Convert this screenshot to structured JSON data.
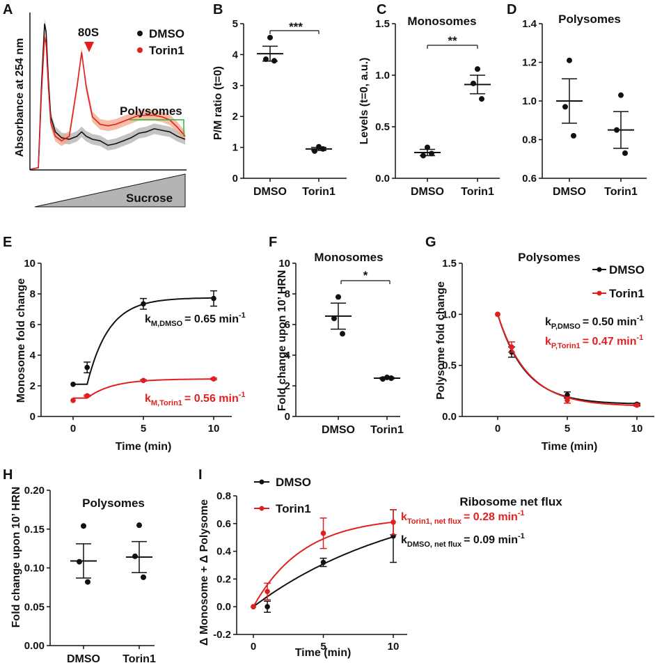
{
  "colors": {
    "dmso": "#111111",
    "torin1": "#e02020",
    "trace_dmso_band": "#b0b0b0",
    "trace_torin_band": "#f2a58a",
    "polysome_bracket": "#2fb82f",
    "arrow": "#e02020",
    "sucrose_fill": "#b4b4b4"
  },
  "chart_data": [
    {
      "id": "A",
      "label": "A",
      "type": "line",
      "ylabel": "Absorbance at 254 nm",
      "legend": [
        "DMSO",
        "Torin1"
      ],
      "annotations": {
        "peak": "80S",
        "region": "Polysomes",
        "gradient": "Sucrose"
      },
      "series": [
        {
          "name": "DMSO",
          "x": [
            0.0,
            0.05,
            0.07,
            0.09,
            0.1,
            0.115,
            0.13,
            0.16,
            0.2,
            0.25,
            0.3,
            0.33,
            0.36,
            0.4,
            0.45,
            0.5,
            0.55,
            0.6,
            0.65,
            0.7,
            0.75,
            0.8,
            0.85,
            0.9,
            0.95,
            1.0
          ],
          "y": [
            0.0,
            0.01,
            0.55,
            0.97,
            0.92,
            0.6,
            0.35,
            0.25,
            0.21,
            0.2,
            0.22,
            0.25,
            0.22,
            0.2,
            0.19,
            0.16,
            0.17,
            0.19,
            0.21,
            0.24,
            0.25,
            0.27,
            0.26,
            0.25,
            0.22,
            0.2
          ]
        },
        {
          "name": "Torin1",
          "x": [
            0.0,
            0.05,
            0.07,
            0.09,
            0.1,
            0.115,
            0.13,
            0.16,
            0.2,
            0.25,
            0.3,
            0.33,
            0.36,
            0.4,
            0.45,
            0.5,
            0.55,
            0.6,
            0.65,
            0.7,
            0.75,
            0.8,
            0.85,
            0.9,
            0.95,
            1.0
          ],
          "y": [
            0.0,
            0.01,
            0.5,
            0.88,
            0.84,
            0.55,
            0.31,
            0.22,
            0.19,
            0.22,
            0.55,
            0.78,
            0.55,
            0.35,
            0.3,
            0.29,
            0.3,
            0.32,
            0.34,
            0.36,
            0.36,
            0.36,
            0.35,
            0.33,
            0.28,
            0.22
          ]
        }
      ]
    },
    {
      "id": "B",
      "label": "B",
      "type": "scatter",
      "ylabel": "P/M ratio (t=0)",
      "ylim": [
        0,
        5
      ],
      "yticks": [
        "0",
        "1",
        "2",
        "3",
        "4",
        "5"
      ],
      "categories": [
        "DMSO",
        "Torin1"
      ],
      "significance": "***",
      "groups": [
        {
          "name": "DMSO",
          "points": [
            4.55,
            3.85,
            3.8
          ],
          "mean": 4.03,
          "sem": 0.24
        },
        {
          "name": "Torin1",
          "points": [
            1.02,
            0.88,
            0.95
          ],
          "mean": 0.95,
          "sem": 0.05
        }
      ]
    },
    {
      "id": "C",
      "label": "C",
      "type": "scatter",
      "title": "Monosomes",
      "ylabel": "Levels (t=0, a.u.)",
      "ylim": [
        0,
        1.5
      ],
      "yticks": [
        "0.0",
        "0.5",
        "1.0",
        "1.5"
      ],
      "categories": [
        "DMSO",
        "Torin1"
      ],
      "significance": "**",
      "groups": [
        {
          "name": "DMSO",
          "points": [
            0.3,
            0.22,
            0.24
          ],
          "mean": 0.25,
          "sem": 0.03
        },
        {
          "name": "Torin1",
          "points": [
            1.06,
            0.92,
            0.77
          ],
          "mean": 0.91,
          "sem": 0.09
        }
      ]
    },
    {
      "id": "D",
      "label": "D",
      "type": "scatter",
      "title": "Polysomes",
      "ylabel": "",
      "ylim": [
        0.6,
        1.4
      ],
      "yticks": [
        "0.6",
        "0.8",
        "1.0",
        "1.2",
        "1.4"
      ],
      "categories": [
        "DMSO",
        "Torin1"
      ],
      "groups": [
        {
          "name": "DMSO",
          "points": [
            1.21,
            0.97,
            0.82
          ],
          "mean": 1.0,
          "sem": 0.115
        },
        {
          "name": "Torin1",
          "points": [
            1.03,
            0.85,
            0.73
          ],
          "mean": 0.85,
          "sem": 0.095
        }
      ]
    },
    {
      "id": "E",
      "label": "E",
      "type": "line",
      "xlabel": "Time (min)",
      "ylabel": "Monosome fold change",
      "xlim": [
        0,
        10
      ],
      "ylim": [
        0,
        10
      ],
      "xticks": [
        "0",
        "5",
        "10"
      ],
      "yticks": [
        "0",
        "2",
        "4",
        "6",
        "8",
        "10"
      ],
      "rates": [
        {
          "series": "DMSO",
          "k": "k",
          "sub": "M,DMSO",
          "value": "= 0.65 min",
          "sup": "-1"
        },
        {
          "series": "Torin1",
          "k": "k",
          "sub": "M,Torin1",
          "value": "= 0.56 min",
          "sup": "-1"
        }
      ],
      "series": [
        {
          "name": "DMSO",
          "x": [
            0,
            1,
            5,
            10
          ],
          "y": [
            2.1,
            3.2,
            7.35,
            7.7
          ],
          "err": [
            0,
            0.35,
            0.35,
            0.5
          ],
          "fit": {
            "y0": 2.1,
            "plateau": 7.75,
            "k": 0.65,
            "lag": 1
          }
        },
        {
          "name": "Torin1",
          "x": [
            0,
            1,
            5,
            10
          ],
          "y": [
            1.05,
            1.35,
            2.35,
            2.45
          ],
          "err": [
            0,
            0.05,
            0.05,
            0.05
          ],
          "fit": {
            "y0": 1.2,
            "plateau": 2.45,
            "k": 0.56,
            "lag": 1
          }
        }
      ]
    },
    {
      "id": "F",
      "label": "F",
      "type": "scatter",
      "title": "Monosomes",
      "ylabel": "Fold change upon 10’ HRN",
      "ylim": [
        0,
        10
      ],
      "yticks": [
        "0",
        "2",
        "4",
        "6",
        "8",
        "10"
      ],
      "categories": [
        "DMSO",
        "Torin1"
      ],
      "significance": "*",
      "groups": [
        {
          "name": "DMSO",
          "points": [
            7.8,
            6.4,
            5.4
          ],
          "mean": 6.55,
          "sem": 0.85
        },
        {
          "name": "Torin1",
          "points": [
            2.55,
            2.45,
            2.5
          ],
          "mean": 2.5,
          "sem": 0.04
        }
      ]
    },
    {
      "id": "G",
      "label": "G",
      "type": "line",
      "title": "Polysomes",
      "xlabel": "Time (min)",
      "ylabel": "Polysome fold change",
      "xlim": [
        0,
        10
      ],
      "ylim": [
        0,
        1.5
      ],
      "xticks": [
        "0",
        "5",
        "10"
      ],
      "yticks": [
        "0.0",
        "0.5",
        "1.0",
        "1.5"
      ],
      "legend": [
        "DMSO",
        "Torin1"
      ],
      "rates": [
        {
          "series": "DMSO",
          "k": "k",
          "sub": "P,DMSO",
          "value": "= 0.50 min",
          "sup": "-1"
        },
        {
          "series": "Torin1",
          "k": "k",
          "sub": "P,Torin1",
          "value": "= 0.47 min",
          "sup": "-1"
        }
      ],
      "series": [
        {
          "name": "DMSO",
          "x": [
            0,
            1,
            5,
            10
          ],
          "y": [
            1.0,
            0.63,
            0.21,
            0.12
          ],
          "err": [
            0,
            0.05,
            0.03,
            0.01
          ],
          "fit": {
            "plateau": 0.12,
            "k": 0.5
          }
        },
        {
          "name": "Torin1",
          "x": [
            0,
            1,
            5,
            10
          ],
          "y": [
            1.0,
            0.68,
            0.16,
            0.11
          ],
          "err": [
            0,
            0.05,
            0.03,
            0.01
          ],
          "fit": {
            "plateau": 0.1,
            "k": 0.47
          }
        }
      ]
    },
    {
      "id": "H",
      "label": "H",
      "type": "scatter",
      "title": "Polysomes",
      "ylabel": "Fold change upon 10’ HRN",
      "ylim": [
        0,
        0.2
      ],
      "yticks": [
        "0.00",
        "0.05",
        "0.10",
        "0.15",
        "0.20"
      ],
      "categories": [
        "DMSO",
        "Torin1"
      ],
      "groups": [
        {
          "name": "DMSO",
          "points": [
            0.154,
            0.108,
            0.082
          ],
          "mean": 0.109,
          "sem": 0.022
        },
        {
          "name": "Torin1",
          "points": [
            0.155,
            0.115,
            0.088
          ],
          "mean": 0.114,
          "sem": 0.02
        }
      ]
    },
    {
      "id": "I",
      "label": "I",
      "type": "line",
      "title": "Ribosome net flux",
      "xlabel": "Time (min)",
      "ylabel": "Δ Monosome + Δ Polysome",
      "xlim": [
        0,
        10
      ],
      "ylim": [
        -0.2,
        0.8
      ],
      "xticks": [
        "0",
        "5",
        "10"
      ],
      "yticks": [
        "-0.2",
        "0.0",
        "0.2",
        "0.4",
        "0.6",
        "0.8"
      ],
      "legend": [
        "DMSO",
        "Torin1"
      ],
      "rates": [
        {
          "series": "Torin1",
          "k": "k",
          "sub": "Torin1, net flux",
          "value": "= 0.28 min",
          "sup": "-1"
        },
        {
          "series": "DMSO",
          "k": "k",
          "sub": "DMSO, net flux",
          "value": "= 0.09 min",
          "sup": "-1"
        }
      ],
      "series": [
        {
          "name": "DMSO",
          "x": [
            0,
            1,
            5,
            10
          ],
          "y": [
            0.0,
            0.0,
            0.32,
            0.51
          ],
          "err": [
            0,
            0.04,
            0.03,
            0.19
          ],
          "fit": {
            "plateau": 0.85,
            "k": 0.09
          }
        },
        {
          "name": "Torin1",
          "x": [
            0,
            1,
            5,
            10
          ],
          "y": [
            0.0,
            0.11,
            0.53,
            0.61
          ],
          "err": [
            0,
            0.06,
            0.11,
            0.09
          ],
          "fit": {
            "plateau": 0.65,
            "k": 0.28
          }
        }
      ]
    }
  ]
}
